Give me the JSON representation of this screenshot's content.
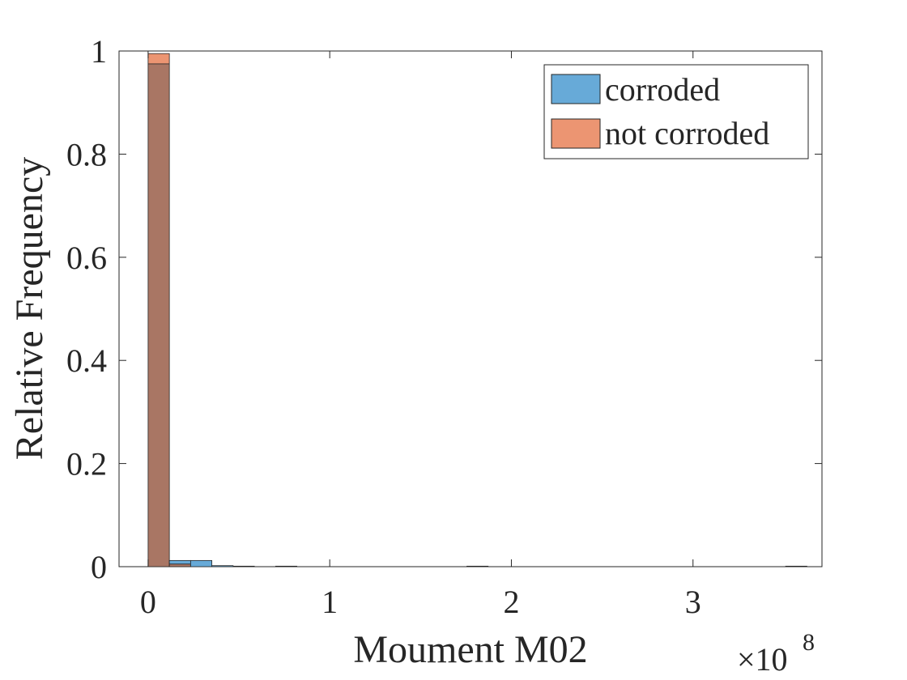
{
  "chart_data": {
    "type": "bar",
    "subtype": "overlaid-histogram",
    "xlabel": "Moument M02",
    "ylabel": "Relative Frequency",
    "x_exponent_label": "×10",
    "x_exponent_power": "8",
    "xlim": [
      -0.16,
      3.71
    ],
    "ylim": [
      0,
      1
    ],
    "xticks": [
      0,
      1,
      2,
      3
    ],
    "xtick_labels": [
      "0",
      "1",
      "2",
      "3"
    ],
    "yticks": [
      0,
      0.2,
      0.4,
      0.6,
      0.8,
      1
    ],
    "ytick_labels": [
      "0",
      "0.2",
      "0.4",
      "0.6",
      "0.8",
      "1"
    ],
    "bin_width": 0.117,
    "bin_start": 0.0,
    "grid": false,
    "legend_position": "top-right",
    "series": [
      {
        "name": "corroded",
        "color": "#0072BD",
        "bins": [
          {
            "bin": 0,
            "value": 0.975
          },
          {
            "bin": 1,
            "value": 0.012
          },
          {
            "bin": 2,
            "value": 0.012
          },
          {
            "bin": 3,
            "value": 0.002
          },
          {
            "bin": 4,
            "value": 0.001
          },
          {
            "bin": 6,
            "value": 0.001
          },
          {
            "bin": 15,
            "value": 0.001
          },
          {
            "bin": 30,
            "value": 0.001
          }
        ]
      },
      {
        "name": "not corroded",
        "color": "#D95319",
        "bins": [
          {
            "bin": 0,
            "value": 0.995
          },
          {
            "bin": 1,
            "value": 0.005
          }
        ]
      }
    ]
  },
  "colors": {
    "corroded_fill": "#67AAD8",
    "not_corroded_fill": "#EC9572",
    "overlap_fill": "#A97664",
    "axis": "#262626"
  }
}
